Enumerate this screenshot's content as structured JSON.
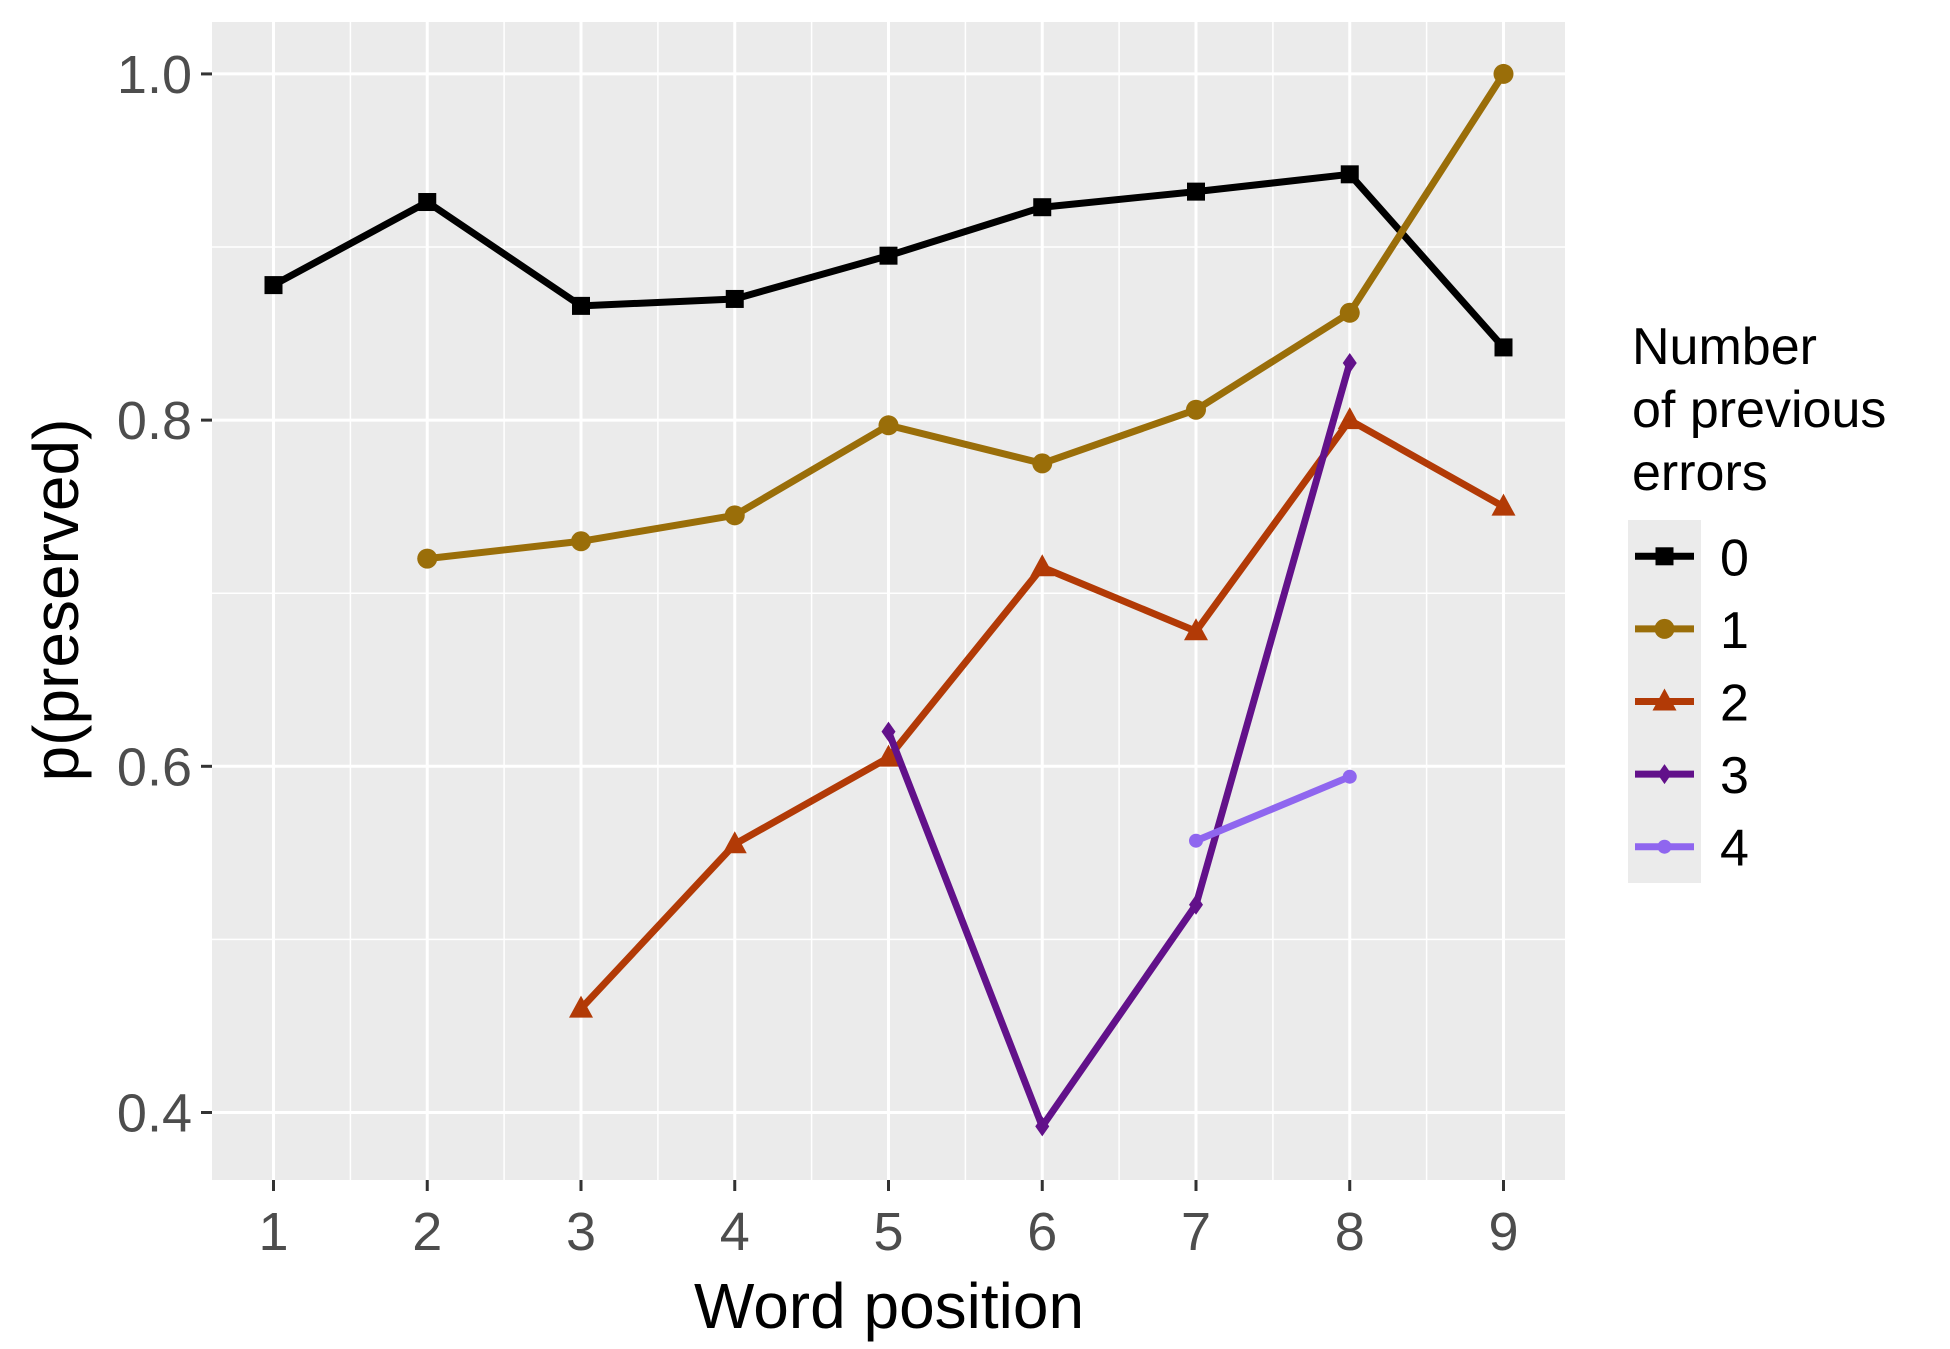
{
  "chart_data": {
    "type": "line",
    "title": "",
    "xlabel": "Word position",
    "ylabel": "p(preserved)",
    "x": [
      1,
      2,
      3,
      4,
      5,
      6,
      7,
      8,
      9
    ],
    "xlim": [
      0.6,
      9.4
    ],
    "ylim": [
      0.361,
      1.03
    ],
    "yticks": [
      0.4,
      0.6,
      0.8,
      1.0
    ],
    "ytick_labels": [
      "0.4",
      "0.6",
      "0.8",
      "1.0"
    ],
    "xtick_labels": [
      "1",
      "2",
      "3",
      "4",
      "5",
      "6",
      "7",
      "8",
      "9"
    ],
    "grid": true,
    "legend": {
      "title_lines": [
        "Number",
        "of previous",
        "errors"
      ],
      "placement": "right"
    },
    "series": [
      {
        "name": "0",
        "color": "#000000",
        "marker": "square",
        "x": [
          1,
          2,
          3,
          4,
          5,
          6,
          7,
          8,
          9
        ],
        "y": [
          0.878,
          0.926,
          0.866,
          0.87,
          0.895,
          0.923,
          0.932,
          0.942,
          0.842
        ]
      },
      {
        "name": "1",
        "color": "#9a6e09",
        "marker": "circle",
        "x": [
          2,
          3,
          4,
          5,
          6,
          7,
          8,
          9
        ],
        "y": [
          0.72,
          0.73,
          0.745,
          0.797,
          0.775,
          0.806,
          0.862,
          1.0
        ]
      },
      {
        "name": "2",
        "color": "#b23a06",
        "marker": "triangle",
        "x": [
          3,
          4,
          5,
          6,
          7,
          8,
          9
        ],
        "y": [
          0.46,
          0.555,
          0.605,
          0.715,
          0.678,
          0.8,
          0.75
        ]
      },
      {
        "name": "3",
        "color": "#62118a",
        "marker": "diamond",
        "x": [
          5,
          6,
          7,
          8
        ],
        "y": [
          0.62,
          0.392,
          0.52,
          0.833
        ]
      },
      {
        "name": "4",
        "color": "#8f66ef",
        "marker": "smallcircle",
        "x": [
          7,
          8
        ],
        "y": [
          0.557,
          0.594
        ]
      }
    ]
  }
}
